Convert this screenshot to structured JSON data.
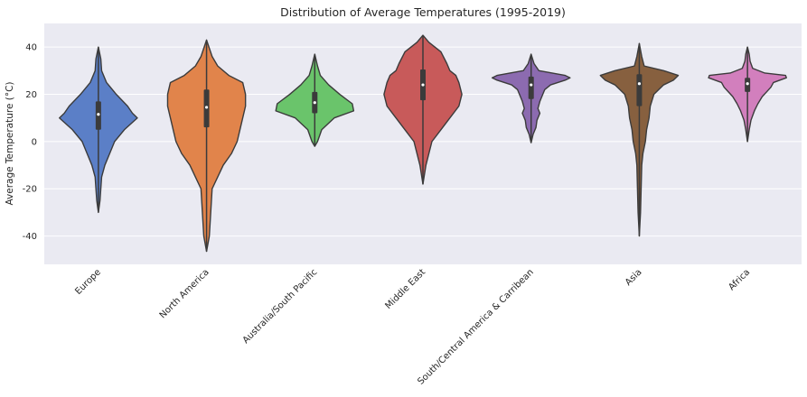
{
  "chart_data": {
    "type": "violin",
    "title": "Distribution of Average Temperatures (1995-2019)",
    "xlabel": "",
    "ylabel": "Average Temperature (°C)",
    "ylim": [
      -52,
      50
    ],
    "yticks": [
      -40,
      -20,
      0,
      20,
      40
    ],
    "grid": true,
    "categories": [
      "Europe",
      "North America",
      "Australia/South Pacific",
      "Middle East",
      "South/Central America & Carribean",
      "Asia",
      "Africa"
    ],
    "series": [
      {
        "category": "Europe",
        "color": "#5b7fc7",
        "min": -30,
        "max": 40,
        "q1": 5,
        "median": 11.5,
        "q3": 17,
        "profile": [
          [
            -30,
            0
          ],
          [
            -25,
            1
          ],
          [
            -20,
            1.5
          ],
          [
            -15,
            2
          ],
          [
            -10,
            4
          ],
          [
            -5,
            7
          ],
          [
            0,
            10
          ],
          [
            5,
            16
          ],
          [
            10,
            24
          ],
          [
            12,
            21
          ],
          [
            15,
            18
          ],
          [
            20,
            11
          ],
          [
            25,
            5
          ],
          [
            30,
            2
          ],
          [
            35,
            1.5
          ],
          [
            40,
            0
          ]
        ]
      },
      {
        "category": "North America",
        "color": "#e1844b",
        "min": -46.5,
        "max": 43,
        "q1": 6,
        "median": 14.5,
        "q3": 22,
        "profile": [
          [
            -46.5,
            0
          ],
          [
            -40,
            1
          ],
          [
            -30,
            1.5
          ],
          [
            -20,
            2
          ],
          [
            -15,
            4
          ],
          [
            -10,
            6
          ],
          [
            -5,
            9
          ],
          [
            0,
            11
          ],
          [
            5,
            12
          ],
          [
            10,
            13
          ],
          [
            15,
            14
          ],
          [
            20,
            14
          ],
          [
            25,
            13
          ],
          [
            28,
            8
          ],
          [
            32,
            4
          ],
          [
            36,
            2
          ],
          [
            43,
            0
          ]
        ]
      },
      {
        "category": "Australia/South Pacific",
        "color": "#6ac46b",
        "min": -2,
        "max": 37,
        "q1": 12,
        "median": 16.5,
        "q3": 21,
        "profile": [
          [
            -2,
            0
          ],
          [
            0,
            2
          ],
          [
            5,
            5
          ],
          [
            10,
            14
          ],
          [
            13,
            28
          ],
          [
            16,
            27
          ],
          [
            20,
            18
          ],
          [
            24,
            10
          ],
          [
            28,
            4
          ],
          [
            32,
            2
          ],
          [
            37,
            0
          ]
        ]
      },
      {
        "category": "Middle East",
        "color": "#c85a5a",
        "min": -18,
        "max": 45,
        "q1": 17.5,
        "median": 24,
        "q3": 30.5,
        "profile": [
          [
            -18,
            0
          ],
          [
            -10,
            1
          ],
          [
            0,
            3
          ],
          [
            5,
            6
          ],
          [
            10,
            9
          ],
          [
            15,
            12
          ],
          [
            20,
            13
          ],
          [
            25,
            12
          ],
          [
            28,
            11
          ],
          [
            30,
            9
          ],
          [
            33,
            8
          ],
          [
            38,
            6
          ],
          [
            42,
            2
          ],
          [
            45,
            0
          ]
        ]
      },
      {
        "category": "South/Central America & Carribean",
        "color": "#8c6bb0",
        "min": -0.5,
        "max": 37,
        "q1": 18,
        "median": 24,
        "q3": 27.5,
        "profile": [
          [
            -0.5,
            0
          ],
          [
            3,
            2
          ],
          [
            6,
            5
          ],
          [
            9,
            6
          ],
          [
            12,
            9
          ],
          [
            14,
            7
          ],
          [
            17,
            9
          ],
          [
            20,
            12
          ],
          [
            22,
            14
          ],
          [
            24,
            20
          ],
          [
            26,
            35
          ],
          [
            27,
            40
          ],
          [
            28,
            35
          ],
          [
            30,
            8
          ],
          [
            33,
            3
          ],
          [
            37,
            0
          ]
        ]
      },
      {
        "category": "Asia",
        "color": "#87603f",
        "min": -40,
        "max": 41.5,
        "q1": 15,
        "median": 24.5,
        "q3": 28.5,
        "profile": [
          [
            -40,
            0
          ],
          [
            -30,
            1
          ],
          [
            -20,
            1.5
          ],
          [
            -10,
            2
          ],
          [
            -5,
            3
          ],
          [
            0,
            5
          ],
          [
            5,
            6
          ],
          [
            10,
            8
          ],
          [
            15,
            9
          ],
          [
            20,
            12
          ],
          [
            24,
            20
          ],
          [
            26,
            28
          ],
          [
            28,
            32
          ],
          [
            30,
            20
          ],
          [
            32,
            4
          ],
          [
            36,
            2
          ],
          [
            41.5,
            0
          ]
        ]
      },
      {
        "category": "Africa",
        "color": "#d27fbd",
        "min": 0,
        "max": 40,
        "q1": 21,
        "median": 24.5,
        "q3": 27,
        "profile": [
          [
            0,
            0
          ],
          [
            5,
            2
          ],
          [
            9,
            4
          ],
          [
            13,
            8
          ],
          [
            16,
            12
          ],
          [
            19,
            17
          ],
          [
            21,
            22
          ],
          [
            23,
            27
          ],
          [
            25,
            30
          ],
          [
            27,
            45
          ],
          [
            28,
            44
          ],
          [
            29,
            20
          ],
          [
            31,
            6
          ],
          [
            34,
            3
          ],
          [
            37,
            2
          ],
          [
            40,
            0
          ]
        ]
      }
    ]
  }
}
